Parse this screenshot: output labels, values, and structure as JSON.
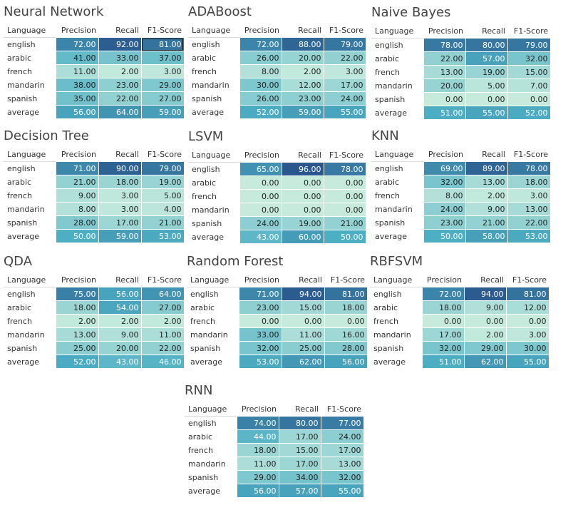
{
  "chart_data": [
    {
      "type": "heatmap",
      "title": "Neural Network",
      "columns": [
        "Language",
        "Precision",
        "Recall",
        "F1-Score"
      ],
      "rows": [
        {
          "language": "english",
          "values": [
            72,
            92,
            81
          ]
        },
        {
          "language": "arabic",
          "values": [
            41,
            33,
            37
          ]
        },
        {
          "language": "french",
          "values": [
            11,
            2,
            3
          ]
        },
        {
          "language": "mandarin",
          "values": [
            38,
            23,
            29
          ]
        },
        {
          "language": "spanish",
          "values": [
            35,
            22,
            27
          ]
        },
        {
          "language": "average",
          "values": [
            56,
            64,
            59
          ]
        }
      ],
      "highlight": {
        "row": 0,
        "col": 2
      }
    },
    {
      "type": "heatmap",
      "title": "ADABoost",
      "columns": [
        "Language",
        "Precision",
        "Recall",
        "F1-Score"
      ],
      "rows": [
        {
          "language": "english",
          "values": [
            72,
            88,
            79
          ]
        },
        {
          "language": "arabic",
          "values": [
            26,
            20,
            22
          ]
        },
        {
          "language": "french",
          "values": [
            8,
            2,
            3
          ]
        },
        {
          "language": "mandarin",
          "values": [
            30,
            12,
            17
          ]
        },
        {
          "language": "spanish",
          "values": [
            26,
            23,
            24
          ]
        },
        {
          "language": "average",
          "values": [
            52,
            59,
            55
          ]
        }
      ]
    },
    {
      "type": "heatmap",
      "title": "Naive Bayes",
      "columns": [
        "Language",
        "Precision",
        "Recall",
        "F1-Score"
      ],
      "rows": [
        {
          "language": "english",
          "values": [
            78,
            80,
            79
          ]
        },
        {
          "language": "arabic",
          "values": [
            22,
            57,
            32
          ]
        },
        {
          "language": "french",
          "values": [
            13,
            19,
            15
          ]
        },
        {
          "language": "mandarin",
          "values": [
            20,
            5,
            7
          ]
        },
        {
          "language": "spanish",
          "values": [
            0,
            0,
            0
          ]
        },
        {
          "language": "average",
          "values": [
            51,
            55,
            52
          ]
        }
      ]
    },
    {
      "type": "heatmap",
      "title": "Decision Tree",
      "columns": [
        "Language",
        "Precision",
        "Recall",
        "F1-Score"
      ],
      "rows": [
        {
          "language": "english",
          "values": [
            71,
            90,
            79
          ]
        },
        {
          "language": "arabic",
          "values": [
            21,
            18,
            19
          ]
        },
        {
          "language": "french",
          "values": [
            9,
            3,
            5
          ]
        },
        {
          "language": "mandarin",
          "values": [
            8,
            3,
            4
          ]
        },
        {
          "language": "spanish",
          "values": [
            28,
            17,
            21
          ]
        },
        {
          "language": "average",
          "values": [
            50,
            59,
            53
          ]
        }
      ]
    },
    {
      "type": "heatmap",
      "title": "LSVM",
      "columns": [
        "Language",
        "Precision",
        "Recall",
        "F1-Score"
      ],
      "rows": [
        {
          "language": "english",
          "values": [
            65,
            96,
            78
          ]
        },
        {
          "language": "arabic",
          "values": [
            0,
            0,
            0
          ]
        },
        {
          "language": "french",
          "values": [
            0,
            0,
            0
          ]
        },
        {
          "language": "mandarin",
          "values": [
            0,
            0,
            0
          ]
        },
        {
          "language": "spanish",
          "values": [
            24,
            19,
            21
          ]
        },
        {
          "language": "average",
          "values": [
            43,
            60,
            50
          ]
        }
      ]
    },
    {
      "type": "heatmap",
      "title": "KNN",
      "columns": [
        "Language",
        "Precision",
        "Recall",
        "F1-Score"
      ],
      "rows": [
        {
          "language": "english",
          "values": [
            69,
            89,
            78
          ]
        },
        {
          "language": "arabic",
          "values": [
            32,
            13,
            18
          ]
        },
        {
          "language": "french",
          "values": [
            8,
            2,
            3
          ]
        },
        {
          "language": "mandarin",
          "values": [
            24,
            9,
            13
          ]
        },
        {
          "language": "spanish",
          "values": [
            23,
            21,
            22
          ]
        },
        {
          "language": "average",
          "values": [
            50,
            58,
            53
          ]
        }
      ]
    },
    {
      "type": "heatmap",
      "title": "QDA",
      "columns": [
        "Language",
        "Precision",
        "Recall",
        "F1-Score"
      ],
      "rows": [
        {
          "language": "english",
          "values": [
            75,
            56,
            64
          ]
        },
        {
          "language": "arabic",
          "values": [
            18,
            54,
            27
          ]
        },
        {
          "language": "french",
          "values": [
            2,
            2,
            2
          ]
        },
        {
          "language": "mandarin",
          "values": [
            13,
            9,
            11
          ]
        },
        {
          "language": "spanish",
          "values": [
            25,
            20,
            22
          ]
        },
        {
          "language": "average",
          "values": [
            52,
            43,
            46
          ]
        }
      ]
    },
    {
      "type": "heatmap",
      "title": "Random Forest",
      "columns": [
        "Language",
        "Precision",
        "Recall",
        "F1-Score"
      ],
      "rows": [
        {
          "language": "english",
          "values": [
            71,
            94,
            81
          ]
        },
        {
          "language": "arabic",
          "values": [
            23,
            15,
            18
          ]
        },
        {
          "language": "french",
          "values": [
            0,
            0,
            0
          ]
        },
        {
          "language": "mandarin",
          "values": [
            33,
            11,
            16
          ]
        },
        {
          "language": "spanish",
          "values": [
            32,
            25,
            28
          ]
        },
        {
          "language": "average",
          "values": [
            53,
            62,
            56
          ]
        }
      ]
    },
    {
      "type": "heatmap",
      "title": "RBFSVM",
      "columns": [
        "Language",
        "Precision",
        "Recall",
        "F1-Score"
      ],
      "rows": [
        {
          "language": "english",
          "values": [
            72,
            94,
            81
          ]
        },
        {
          "language": "arabic",
          "values": [
            18,
            9,
            12
          ]
        },
        {
          "language": "french",
          "values": [
            0,
            0,
            0
          ]
        },
        {
          "language": "mandarin",
          "values": [
            17,
            2,
            3
          ]
        },
        {
          "language": "spanish",
          "values": [
            32,
            29,
            30
          ]
        },
        {
          "language": "average",
          "values": [
            51,
            62,
            55
          ]
        }
      ]
    },
    {
      "type": "heatmap",
      "title": "RNN",
      "columns": [
        "Language",
        "Precision",
        "Recall",
        "F1-Score"
      ],
      "rows": [
        {
          "language": "english",
          "values": [
            74,
            80,
            77
          ]
        },
        {
          "language": "arabic",
          "values": [
            44,
            17,
            24
          ]
        },
        {
          "language": "french",
          "values": [
            18,
            15,
            17
          ]
        },
        {
          "language": "mandarin",
          "values": [
            11,
            17,
            13
          ]
        },
        {
          "language": "spanish",
          "values": [
            29,
            34,
            32
          ]
        },
        {
          "language": "average",
          "values": [
            56,
            57,
            55
          ]
        }
      ]
    }
  ],
  "colors": {
    "low": "#c6ebdd",
    "mid": "#4dafc4",
    "high": "#264f88"
  }
}
